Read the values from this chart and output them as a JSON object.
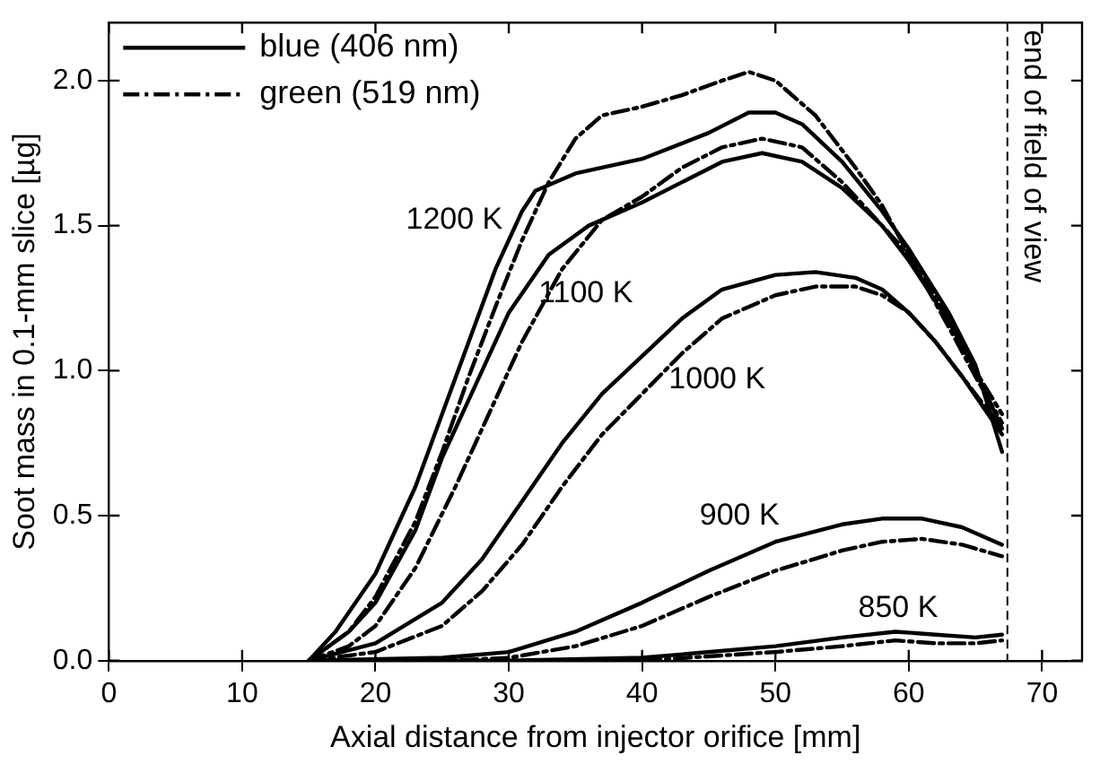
{
  "chart_data": {
    "type": "line",
    "xlabel": "Axial distance from injector orifice [mm]",
    "ylabel": "Soot mass in 0.1-mm slice [µg]",
    "xlim": [
      0,
      73
    ],
    "xticks": [
      0,
      10,
      20,
      30,
      40,
      50,
      60,
      70
    ],
    "ylim": [
      0,
      2.2
    ],
    "yticks": [
      {
        "value": 0,
        "label": "0.0"
      },
      {
        "value": 0.5,
        "label": "0.5"
      },
      {
        "value": 1,
        "label": "1.0"
      },
      {
        "value": 1.5,
        "label": "1.5"
      },
      {
        "value": 2,
        "label": "2.0"
      }
    ],
    "grid": false,
    "legend": "top left",
    "marker": "none",
    "series": [
      {
        "name": "blue (406 nm)",
        "color": "#000000",
        "line_style": "solid",
        "x": [
          15,
          17,
          20,
          23,
          25,
          27,
          29,
          31,
          32,
          35,
          40,
          45,
          48,
          50,
          52,
          55,
          58,
          60,
          63,
          65,
          67
        ],
        "values": [
          0,
          0.1,
          0.3,
          0.6,
          0.85,
          1.1,
          1.35,
          1.55,
          1.62,
          1.68,
          1.73,
          1.82,
          1.89,
          1.89,
          1.85,
          1.72,
          1.55,
          1.42,
          1.2,
          1.02,
          0.72
        ]
      },
      {
        "name": "green (519 nm)",
        "color": "#000000",
        "line_style": "dashed",
        "x": [
          15,
          18,
          20,
          23,
          25,
          27,
          29,
          31,
          33,
          35,
          37,
          40,
          43,
          46,
          48,
          50,
          53,
          56,
          58,
          60,
          63,
          65,
          67
        ],
        "values": [
          0,
          0.1,
          0.22,
          0.48,
          0.72,
          0.98,
          1.22,
          1.45,
          1.65,
          1.8,
          1.88,
          1.91,
          1.95,
          2.0,
          2.03,
          2.0,
          1.88,
          1.7,
          1.57,
          1.4,
          1.15,
          0.98,
          0.82
        ]
      },
      {
        "color": "#000000",
        "line_style": "solid",
        "x": [
          15,
          18,
          20,
          23,
          25,
          28,
          30,
          33,
          36,
          40,
          43,
          46,
          49,
          52,
          55,
          58,
          60,
          63,
          65,
          67
        ],
        "values": [
          0,
          0.1,
          0.2,
          0.45,
          0.7,
          1.0,
          1.2,
          1.4,
          1.5,
          1.58,
          1.65,
          1.72,
          1.75,
          1.72,
          1.63,
          1.5,
          1.38,
          1.17,
          1.0,
          0.8
        ]
      },
      {
        "color": "#000000",
        "line_style": "dashed",
        "x": [
          15,
          18,
          20,
          23,
          26,
          29,
          31,
          34,
          37,
          40,
          43,
          46,
          49,
          52,
          55,
          58,
          60,
          63,
          65,
          67
        ],
        "values": [
          0,
          0.05,
          0.12,
          0.32,
          0.6,
          0.9,
          1.1,
          1.35,
          1.52,
          1.6,
          1.7,
          1.77,
          1.8,
          1.77,
          1.65,
          1.5,
          1.4,
          1.18,
          1.0,
          0.85
        ]
      },
      {
        "color": "#000000",
        "line_style": "solid",
        "x": [
          15,
          20,
          25,
          28,
          31,
          34,
          37,
          40,
          43,
          46,
          50,
          53,
          56,
          58,
          60,
          62,
          64,
          67
        ],
        "values": [
          0,
          0.06,
          0.2,
          0.35,
          0.55,
          0.75,
          0.92,
          1.05,
          1.18,
          1.28,
          1.33,
          1.34,
          1.32,
          1.28,
          1.2,
          1.1,
          0.98,
          0.78
        ]
      },
      {
        "color": "#000000",
        "line_style": "dashed",
        "x": [
          15,
          20,
          25,
          28,
          31,
          34,
          37,
          40,
          43,
          46,
          50,
          53,
          56,
          58,
          60,
          62,
          64,
          67
        ],
        "values": [
          0,
          0.03,
          0.12,
          0.24,
          0.4,
          0.6,
          0.78,
          0.92,
          1.06,
          1.18,
          1.26,
          1.29,
          1.29,
          1.26,
          1.2,
          1.1,
          0.98,
          0.8
        ]
      },
      {
        "color": "#000000",
        "line_style": "solid",
        "x": [
          15,
          25,
          30,
          35,
          40,
          45,
          50,
          55,
          58,
          61,
          64,
          67
        ],
        "values": [
          0,
          0.01,
          0.03,
          0.1,
          0.2,
          0.31,
          0.41,
          0.47,
          0.49,
          0.49,
          0.46,
          0.4
        ]
      },
      {
        "color": "#000000",
        "line_style": "dashed",
        "x": [
          15,
          25,
          30,
          35,
          40,
          45,
          50,
          55,
          58,
          61,
          64,
          67
        ],
        "values": [
          0,
          0,
          0.01,
          0.05,
          0.12,
          0.22,
          0.31,
          0.38,
          0.41,
          0.42,
          0.4,
          0.36
        ]
      },
      {
        "color": "#000000",
        "line_style": "solid",
        "x": [
          15,
          30,
          40,
          50,
          55,
          59,
          62,
          65,
          67
        ],
        "values": [
          0,
          0,
          0.01,
          0.05,
          0.08,
          0.1,
          0.09,
          0.08,
          0.09
        ]
      },
      {
        "color": "#000000",
        "line_style": "dashed",
        "x": [
          15,
          30,
          40,
          50,
          55,
          59,
          62,
          65,
          67
        ],
        "values": [
          0,
          0,
          0,
          0.03,
          0.05,
          0.07,
          0.06,
          0.06,
          0.07
        ]
      }
    ],
    "ref_lines": [
      {
        "axis": "x",
        "value": 67.4,
        "label": "end of field of view",
        "line_style": "dashed",
        "color": "#000000"
      }
    ],
    "annotations": [
      "1200 K",
      "1100 K",
      "1000 K",
      "900 K",
      "850 K"
    ]
  }
}
